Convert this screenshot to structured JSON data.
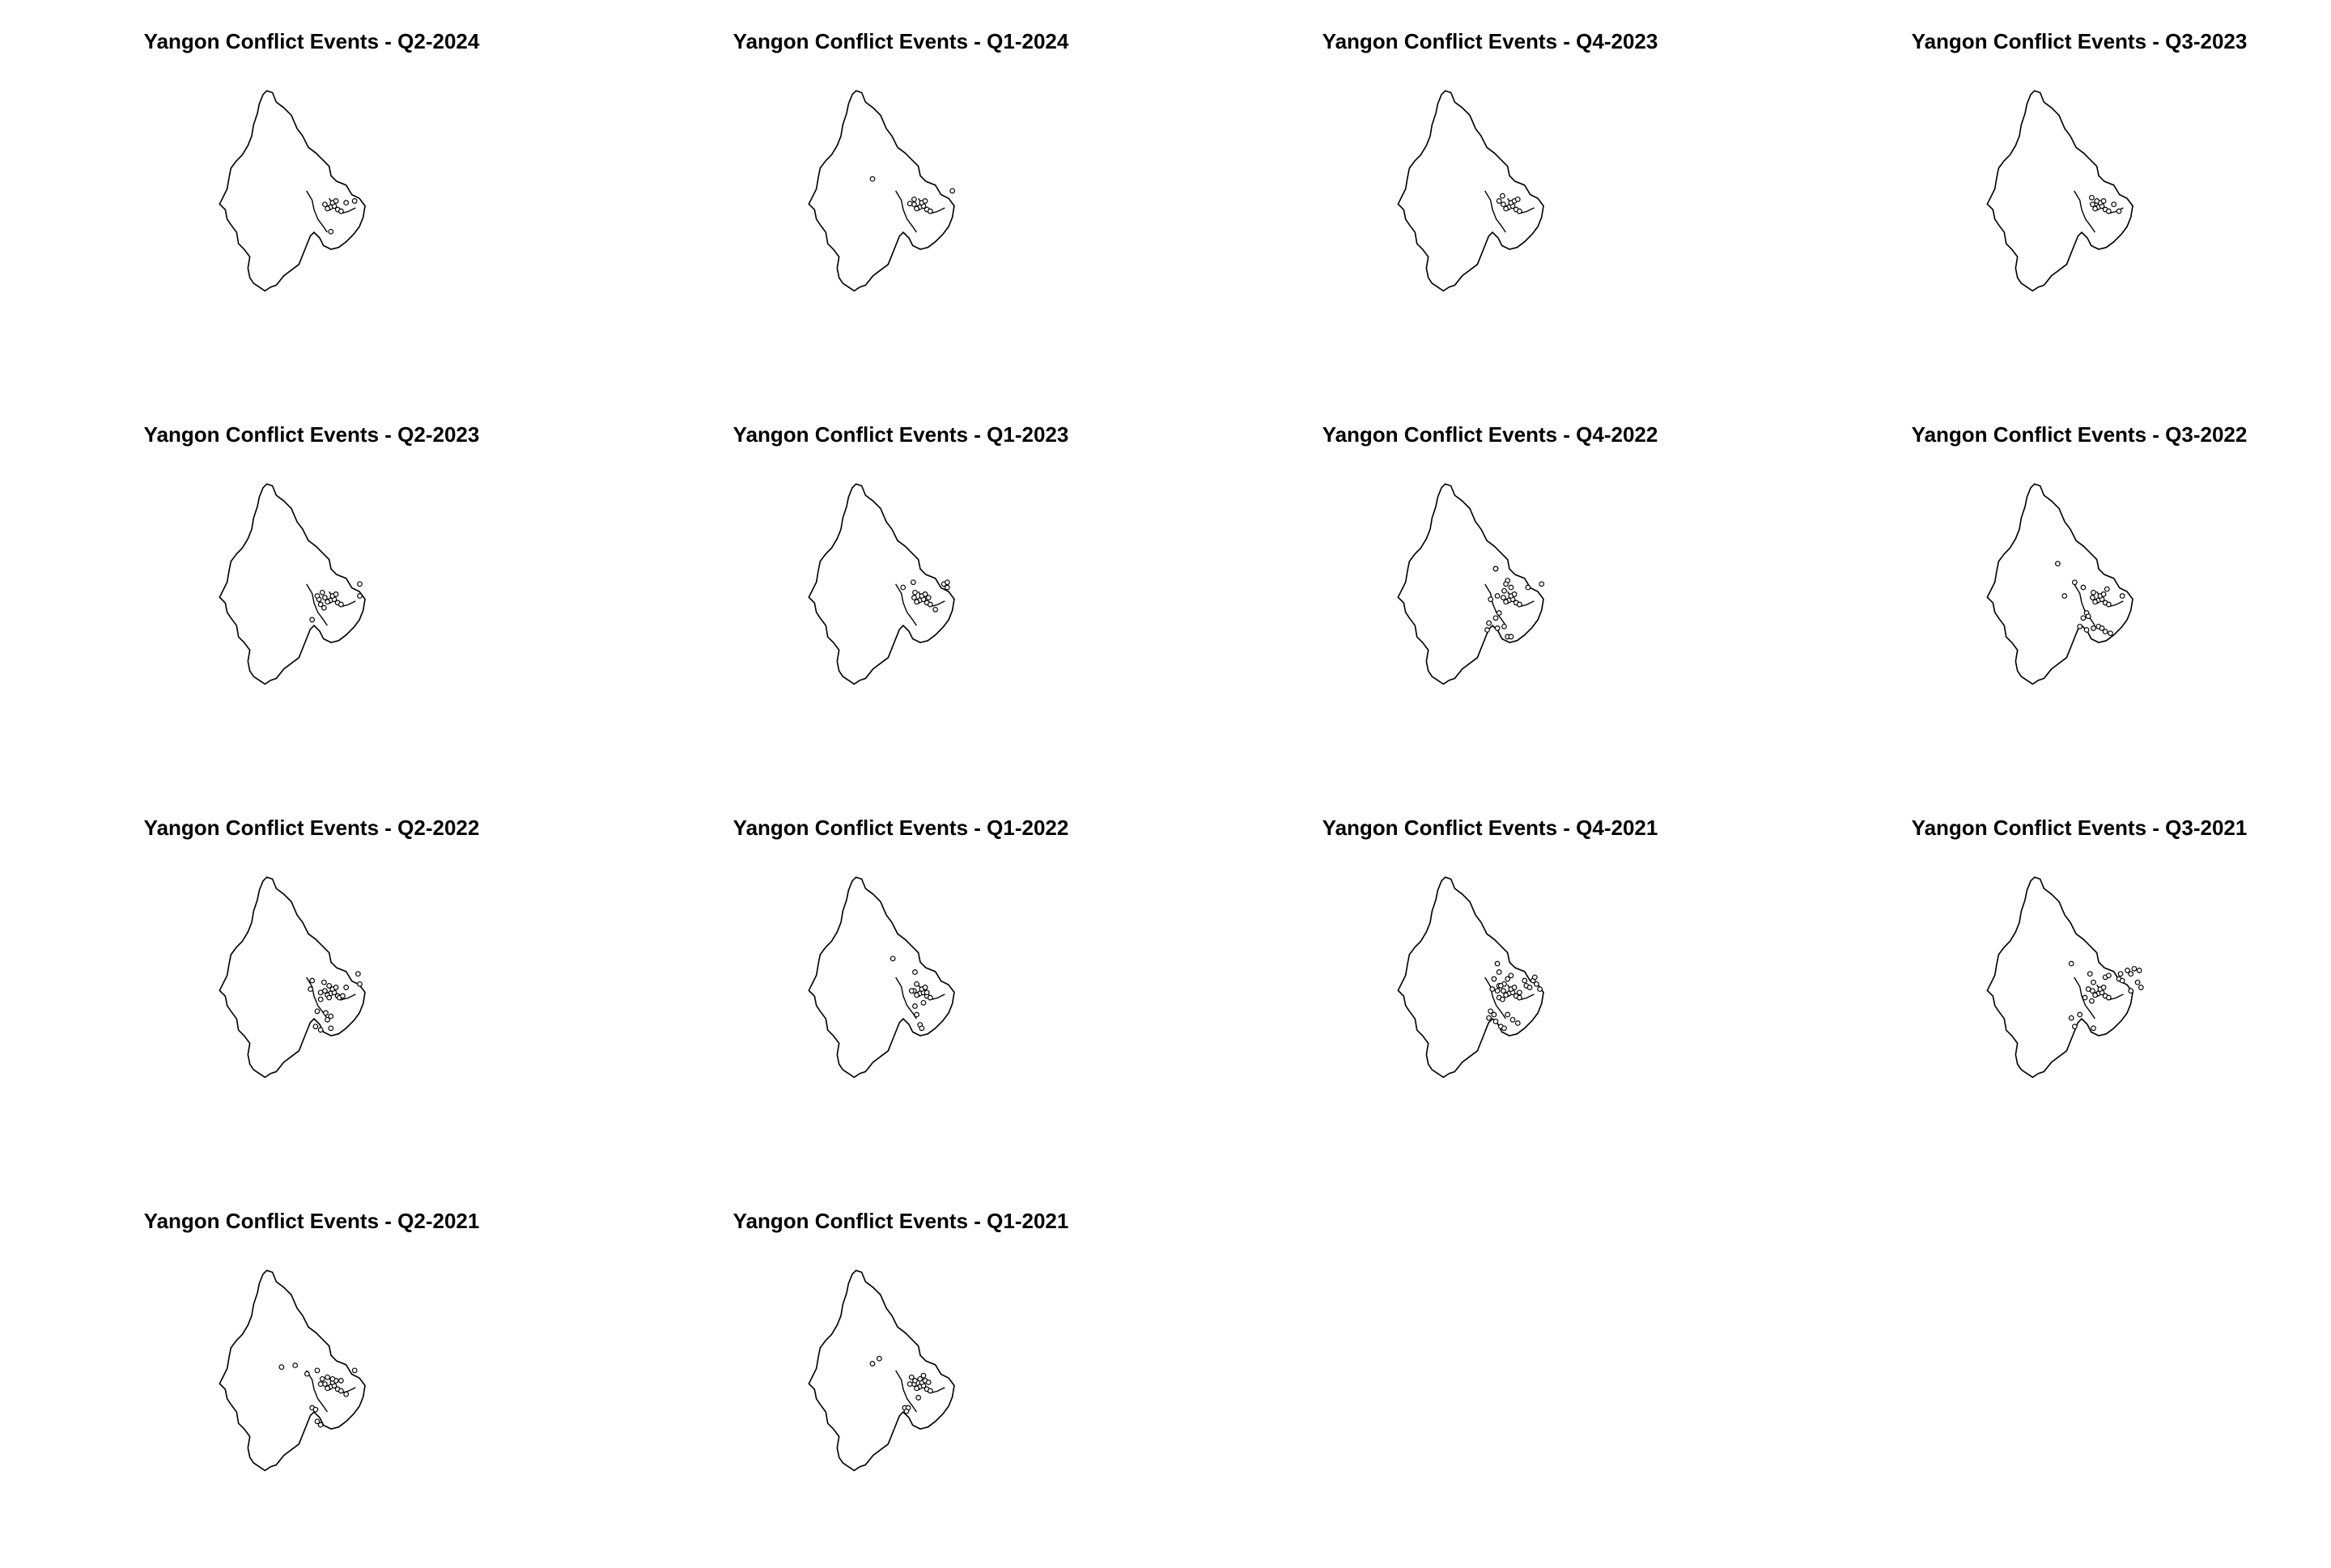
{
  "colors": {
    "outline": "#000000",
    "background": "#ffffff",
    "point_fill": "#ffffff"
  },
  "chart_data": [
    {
      "type": "map",
      "title": "Yangon Conflict Events - Q2-2024",
      "points": [
        [
          60,
          0
        ],
        [
          62,
          -1
        ],
        [
          58,
          1
        ],
        [
          66,
          -2
        ],
        [
          70,
          2
        ],
        [
          64,
          -6
        ],
        [
          55,
          -4
        ],
        [
          68,
          -8
        ],
        [
          74,
          4
        ],
        [
          62,
          28
        ],
        [
          80,
          -6
        ],
        [
          90,
          -8
        ]
      ]
    },
    {
      "type": "map",
      "title": "Yangon Conflict Events - Q1-2024",
      "points": [
        [
          60,
          0
        ],
        [
          62,
          -1
        ],
        [
          58,
          1
        ],
        [
          66,
          -2
        ],
        [
          70,
          2
        ],
        [
          64,
          -6
        ],
        [
          55,
          -4
        ],
        [
          68,
          -8
        ],
        [
          74,
          4
        ],
        [
          6,
          -34
        ],
        [
          100,
          -20
        ],
        [
          55,
          -10
        ],
        [
          50,
          -5
        ]
      ]
    },
    {
      "type": "map",
      "title": "Yangon Conflict Events - Q4-2023",
      "points": [
        [
          60,
          0
        ],
        [
          62,
          -1
        ],
        [
          58,
          1
        ],
        [
          66,
          -2
        ],
        [
          70,
          2
        ],
        [
          64,
          -6
        ],
        [
          55,
          -4
        ],
        [
          68,
          -8
        ],
        [
          74,
          4
        ],
        [
          50,
          -8
        ],
        [
          54,
          -14
        ],
        [
          72,
          -10
        ]
      ]
    },
    {
      "type": "map",
      "title": "Yangon Conflict Events - Q3-2023",
      "points": [
        [
          60,
          0
        ],
        [
          62,
          -1
        ],
        [
          58,
          1
        ],
        [
          66,
          -2
        ],
        [
          70,
          2
        ],
        [
          64,
          -6
        ],
        [
          55,
          -4
        ],
        [
          68,
          -8
        ],
        [
          74,
          4
        ],
        [
          54,
          -12
        ],
        [
          80,
          -4
        ],
        [
          86,
          4
        ],
        [
          60,
          -8
        ]
      ]
    },
    {
      "type": "map",
      "title": "Yangon Conflict Events - Q2-2023",
      "points": [
        [
          60,
          0
        ],
        [
          62,
          -1
        ],
        [
          58,
          1
        ],
        [
          66,
          -2
        ],
        [
          70,
          2
        ],
        [
          64,
          -6
        ],
        [
          55,
          -4
        ],
        [
          68,
          -8
        ],
        [
          74,
          4
        ],
        [
          48,
          -2
        ],
        [
          52,
          -10
        ],
        [
          46,
          -6
        ],
        [
          50,
          4
        ],
        [
          54,
          8
        ],
        [
          96,
          -20
        ],
        [
          96,
          -6
        ],
        [
          40,
          22
        ]
      ]
    },
    {
      "type": "map",
      "title": "Yangon Conflict Events - Q1-2023",
      "points": [
        [
          60,
          0
        ],
        [
          62,
          -1
        ],
        [
          58,
          1
        ],
        [
          66,
          -2
        ],
        [
          70,
          2
        ],
        [
          64,
          -6
        ],
        [
          55,
          -4
        ],
        [
          68,
          -8
        ],
        [
          74,
          4
        ],
        [
          42,
          -16
        ],
        [
          54,
          -22
        ],
        [
          90,
          -20
        ],
        [
          94,
          -22
        ],
        [
          94,
          -16
        ],
        [
          56,
          -10
        ],
        [
          72,
          -4
        ],
        [
          80,
          10
        ]
      ]
    },
    {
      "type": "map",
      "title": "Yangon Conflict Events - Q4-2022",
      "points": [
        [
          60,
          0
        ],
        [
          62,
          -1
        ],
        [
          58,
          1
        ],
        [
          66,
          -2
        ],
        [
          70,
          2
        ],
        [
          64,
          -6
        ],
        [
          55,
          -4
        ],
        [
          68,
          -8
        ],
        [
          74,
          4
        ],
        [
          46,
          -38
        ],
        [
          46,
          -38
        ],
        [
          60,
          -24
        ],
        [
          64,
          -16
        ],
        [
          56,
          -12
        ],
        [
          48,
          -6
        ],
        [
          40,
          -2
        ],
        [
          50,
          14
        ],
        [
          46,
          20
        ],
        [
          38,
          26
        ],
        [
          36,
          34
        ],
        [
          48,
          32
        ],
        [
          56,
          30
        ],
        [
          60,
          42
        ],
        [
          64,
          42
        ],
        [
          84,
          -16
        ],
        [
          100,
          -20
        ],
        [
          58,
          -20
        ]
      ]
    },
    {
      "type": "map",
      "title": "Yangon Conflict Events - Q3-2022",
      "points": [
        [
          60,
          0
        ],
        [
          62,
          -1
        ],
        [
          58,
          1
        ],
        [
          66,
          -2
        ],
        [
          70,
          2
        ],
        [
          64,
          -6
        ],
        [
          55,
          -4
        ],
        [
          68,
          -8
        ],
        [
          74,
          4
        ],
        [
          14,
          -44
        ],
        [
          34,
          -22
        ],
        [
          44,
          -16
        ],
        [
          56,
          -10
        ],
        [
          72,
          -14
        ],
        [
          22,
          -6
        ],
        [
          48,
          14
        ],
        [
          44,
          20
        ],
        [
          50,
          18
        ],
        [
          40,
          30
        ],
        [
          48,
          34
        ],
        [
          56,
          32
        ],
        [
          62,
          30
        ],
        [
          66,
          32
        ],
        [
          70,
          36
        ],
        [
          76,
          38
        ],
        [
          90,
          -6
        ]
      ]
    },
    {
      "type": "map",
      "title": "Yangon Conflict Events - Q2-2022",
      "points": [
        [
          60,
          0
        ],
        [
          62,
          -1
        ],
        [
          58,
          1
        ],
        [
          66,
          -2
        ],
        [
          70,
          2
        ],
        [
          64,
          -6
        ],
        [
          55,
          -4
        ],
        [
          68,
          -8
        ],
        [
          74,
          4
        ],
        [
          40,
          -16
        ],
        [
          38,
          -6
        ],
        [
          54,
          -14
        ],
        [
          60,
          -10
        ],
        [
          50,
          -2
        ],
        [
          50,
          6
        ],
        [
          60,
          4
        ],
        [
          72,
          4
        ],
        [
          76,
          2
        ],
        [
          56,
          22
        ],
        [
          62,
          26
        ],
        [
          58,
          30
        ],
        [
          46,
          20
        ],
        [
          44,
          38
        ],
        [
          50,
          42
        ],
        [
          62,
          40
        ],
        [
          94,
          -24
        ],
        [
          96,
          -12
        ],
        [
          80,
          -8
        ]
      ]
    },
    {
      "type": "map",
      "title": "Yangon Conflict Events - Q1-2022",
      "points": [
        [
          60,
          0
        ],
        [
          62,
          -1
        ],
        [
          58,
          1
        ],
        [
          66,
          -2
        ],
        [
          70,
          2
        ],
        [
          64,
          -6
        ],
        [
          55,
          -4
        ],
        [
          68,
          -8
        ],
        [
          74,
          4
        ],
        [
          30,
          -42
        ],
        [
          56,
          -26
        ],
        [
          58,
          -12
        ],
        [
          52,
          -4
        ],
        [
          66,
          10
        ],
        [
          56,
          14
        ],
        [
          58,
          24
        ],
        [
          62,
          36
        ],
        [
          64,
          40
        ],
        [
          70,
          -2
        ]
      ]
    },
    {
      "type": "map",
      "title": "Yangon Conflict Events - Q4-2021",
      "points": [
        [
          60,
          0
        ],
        [
          62,
          -1
        ],
        [
          58,
          1
        ],
        [
          66,
          -2
        ],
        [
          70,
          2
        ],
        [
          64,
          -6
        ],
        [
          55,
          -4
        ],
        [
          68,
          -8
        ],
        [
          74,
          4
        ],
        [
          48,
          -36
        ],
        [
          50,
          -26
        ],
        [
          44,
          -18
        ],
        [
          42,
          -6
        ],
        [
          48,
          -4
        ],
        [
          50,
          -10
        ],
        [
          56,
          -12
        ],
        [
          60,
          -18
        ],
        [
          64,
          -22
        ],
        [
          52,
          -10
        ],
        [
          50,
          4
        ],
        [
          54,
          6
        ],
        [
          74,
          -2
        ],
        [
          80,
          -16
        ],
        [
          82,
          -10
        ],
        [
          86,
          -8
        ],
        [
          90,
          -16
        ],
        [
          94,
          -12
        ],
        [
          98,
          -6
        ],
        [
          40,
          20
        ],
        [
          38,
          28
        ],
        [
          44,
          24
        ],
        [
          46,
          32
        ],
        [
          60,
          24
        ],
        [
          66,
          30
        ],
        [
          72,
          34
        ],
        [
          52,
          38
        ],
        [
          56,
          40
        ],
        [
          92,
          -20
        ]
      ]
    },
    {
      "type": "map",
      "title": "Yangon Conflict Events - Q3-2021",
      "points": [
        [
          60,
          0
        ],
        [
          62,
          -1
        ],
        [
          58,
          1
        ],
        [
          66,
          -2
        ],
        [
          70,
          2
        ],
        [
          64,
          -6
        ],
        [
          55,
          -4
        ],
        [
          68,
          -8
        ],
        [
          74,
          4
        ],
        [
          30,
          -36
        ],
        [
          52,
          -24
        ],
        [
          56,
          -14
        ],
        [
          50,
          -6
        ],
        [
          46,
          4
        ],
        [
          54,
          8
        ],
        [
          40,
          24
        ],
        [
          30,
          28
        ],
        [
          34,
          38
        ],
        [
          56,
          40
        ],
        [
          70,
          -20
        ],
        [
          74,
          -22
        ],
        [
          86,
          -18
        ],
        [
          88,
          -24
        ],
        [
          90,
          -16
        ],
        [
          96,
          -28
        ],
        [
          100,
          -24
        ],
        [
          104,
          -30
        ],
        [
          110,
          -28
        ],
        [
          108,
          -14
        ],
        [
          100,
          -4
        ],
        [
          112,
          -8
        ]
      ]
    },
    {
      "type": "map",
      "title": "Yangon Conflict Events - Q2-2021",
      "points": [
        [
          60,
          0
        ],
        [
          62,
          -1
        ],
        [
          58,
          1
        ],
        [
          66,
          -2
        ],
        [
          70,
          2
        ],
        [
          64,
          -6
        ],
        [
          55,
          -4
        ],
        [
          68,
          -8
        ],
        [
          74,
          4
        ],
        [
          20,
          -26
        ],
        [
          34,
          -16
        ],
        [
          46,
          -20
        ],
        [
          52,
          -10
        ],
        [
          50,
          -4
        ],
        [
          58,
          -12
        ],
        [
          64,
          -10
        ],
        [
          74,
          -8
        ],
        [
          80,
          8
        ],
        [
          90,
          -20
        ],
        [
          4,
          -24
        ],
        [
          40,
          24
        ],
        [
          44,
          26
        ],
        [
          46,
          40
        ],
        [
          50,
          44
        ]
      ]
    },
    {
      "type": "map",
      "title": "Yangon Conflict Events - Q1-2021",
      "points": [
        [
          60,
          0
        ],
        [
          62,
          -1
        ],
        [
          58,
          1
        ],
        [
          66,
          -2
        ],
        [
          70,
          2
        ],
        [
          64,
          -6
        ],
        [
          55,
          -4
        ],
        [
          68,
          -8
        ],
        [
          74,
          4
        ],
        [
          14,
          -34
        ],
        [
          6,
          -28
        ],
        [
          52,
          -12
        ],
        [
          56,
          -8
        ],
        [
          50,
          -4
        ],
        [
          62,
          -10
        ],
        [
          66,
          -14
        ],
        [
          72,
          -6
        ],
        [
          44,
          24
        ],
        [
          48,
          24
        ],
        [
          46,
          28
        ],
        [
          60,
          12
        ]
      ]
    }
  ]
}
